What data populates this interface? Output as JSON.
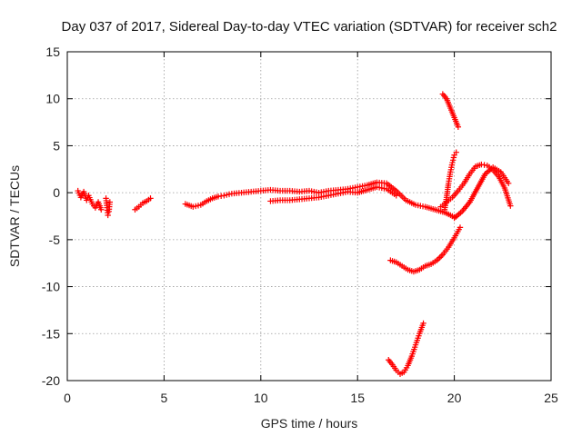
{
  "chart_data": {
    "type": "scatter",
    "title": "Day 037 of 2017, Sidereal Day-to-day VTEC variation (SDTVAR) for receiver sch2",
    "xlabel": "GPS time / hours",
    "ylabel": "SDTVAR / TECUs",
    "xlim": [
      0,
      25
    ],
    "ylim": [
      -20,
      15
    ],
    "xticks": [
      "0",
      "5",
      "10",
      "15",
      "20",
      "25"
    ],
    "yticks": [
      "15",
      "10",
      "5",
      "0",
      "-5",
      "-10",
      "-15",
      "-20"
    ],
    "grid": true,
    "marker": "+",
    "color": "#ff0000",
    "series": [
      {
        "x": [
          0.55,
          0.7,
          0.85,
          1.0,
          1.1,
          1.3,
          1.45,
          1.6,
          1.75
        ],
        "y": [
          0.2,
          -0.5,
          0.1,
          -0.8,
          -0.3,
          -1.2,
          -1.6,
          -1.0,
          -1.8
        ]
      },
      {
        "x": [
          2.0,
          2.05,
          2.1,
          2.15,
          2.2
        ],
        "y": [
          -0.6,
          -1.6,
          -2.4,
          -2.0,
          -1.0
        ]
      },
      {
        "x": [
          3.5,
          3.7,
          3.9,
          4.1,
          4.3
        ],
        "y": [
          -1.8,
          -1.5,
          -1.1,
          -0.9,
          -0.6
        ]
      },
      {
        "x": [
          6.1,
          6.5,
          6.9,
          7.2,
          7.5,
          7.8,
          8.1,
          8.5,
          9.0,
          9.5,
          10.0,
          10.5,
          11.0,
          11.5,
          12.0,
          12.5,
          13.0,
          13.5,
          14.0,
          14.5,
          15.0,
          15.5,
          16.0,
          16.5,
          17.0,
          17.5,
          18.0,
          18.5,
          19.0,
          19.5,
          20.0
        ],
        "y": [
          -1.2,
          -1.5,
          -1.3,
          -0.9,
          -0.6,
          -0.4,
          -0.3,
          -0.1,
          0.0,
          0.1,
          0.2,
          0.3,
          0.2,
          0.2,
          0.1,
          0.2,
          0.0,
          0.2,
          0.3,
          0.4,
          0.6,
          0.8,
          1.1,
          1.0,
          0.2,
          -0.8,
          -1.3,
          -1.5,
          -1.8,
          -2.1,
          -2.6
        ]
      },
      {
        "x": [
          10.5,
          11.0,
          11.5,
          12.0,
          12.5,
          13.0,
          13.5,
          14.0,
          14.5,
          15.0,
          15.5,
          16.0,
          16.5,
          17.0
        ],
        "y": [
          -0.9,
          -0.8,
          -0.8,
          -0.7,
          -0.6,
          -0.5,
          -0.3,
          -0.1,
          0.1,
          0.0,
          0.3,
          0.6,
          0.4,
          -0.3
        ]
      },
      {
        "x": [
          19.3,
          19.6,
          19.9,
          20.2,
          20.5,
          20.8,
          21.1,
          21.4,
          21.7,
          22.0,
          22.3,
          22.6,
          22.9
        ],
        "y": [
          -1.5,
          -1.0,
          -0.5,
          0.2,
          1.0,
          2.0,
          2.8,
          3.0,
          2.9,
          2.4,
          1.7,
          0.5,
          -1.4
        ]
      },
      {
        "x": [
          19.5,
          19.6,
          19.7,
          19.8,
          19.9,
          20.0,
          20.1
        ],
        "y": [
          -1.8,
          -0.5,
          1.0,
          2.2,
          3.2,
          4.0,
          4.3
        ]
      },
      {
        "x": [
          20.0,
          20.4,
          20.8,
          21.2,
          21.6,
          22.0,
          22.4,
          22.8
        ],
        "y": [
          -2.7,
          -2.0,
          -1.0,
          0.5,
          2.0,
          2.7,
          2.2,
          1.0
        ]
      },
      {
        "x": [
          19.4,
          19.6,
          19.8,
          20.0,
          20.2
        ],
        "y": [
          10.5,
          10.0,
          9.0,
          8.0,
          7.0
        ]
      },
      {
        "x": [
          16.7,
          17.0,
          17.3,
          17.6,
          17.9,
          18.2,
          18.5,
          18.8,
          19.1,
          19.4,
          19.7,
          20.0,
          20.3
        ],
        "y": [
          -7.2,
          -7.4,
          -7.8,
          -8.2,
          -8.4,
          -8.2,
          -7.8,
          -7.6,
          -7.2,
          -6.6,
          -5.8,
          -4.8,
          -3.7
        ]
      },
      {
        "x": [
          16.6,
          16.8,
          17.0,
          17.2,
          17.4,
          17.6,
          17.8,
          18.0,
          18.2,
          18.4
        ],
        "y": [
          -17.8,
          -18.3,
          -18.9,
          -19.3,
          -19.1,
          -18.4,
          -17.4,
          -16.2,
          -15.0,
          -13.9
        ]
      }
    ]
  }
}
